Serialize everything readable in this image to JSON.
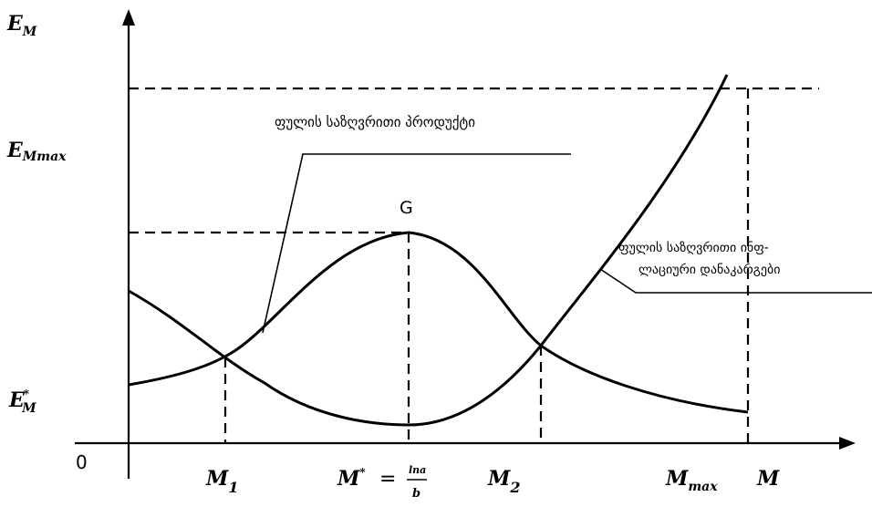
{
  "axes": {
    "y_label_main": "E",
    "y_label_sub": "M",
    "origin": "0",
    "x_label": "M"
  },
  "y_ticks": {
    "emax_main": "E",
    "emax_sub": "Mmax",
    "estar_main": "E",
    "estar_sub": "M",
    "estar_sup": "*"
  },
  "x_ticks": {
    "m1_main": "M",
    "m1_sub": "1",
    "mstar_main": "M",
    "mstar_sup": "*",
    "mstar_eq": "=",
    "mstar_num": "lna",
    "mstar_den": "b",
    "m2_main": "M",
    "m2_sub": "2",
    "mmax_main": "M",
    "mmax_sub": "max"
  },
  "point_g": "G",
  "annotations": {
    "marginal_product": "ფულის საზღვრითი პროდუქტი",
    "marginal_inflation_line1": "ფულის საზღვრითი ინფ-",
    "marginal_inflation_line2": "ლაციური დანაკარგები"
  },
  "colors": {
    "ink": "#000000",
    "background": "#ffffff"
  }
}
